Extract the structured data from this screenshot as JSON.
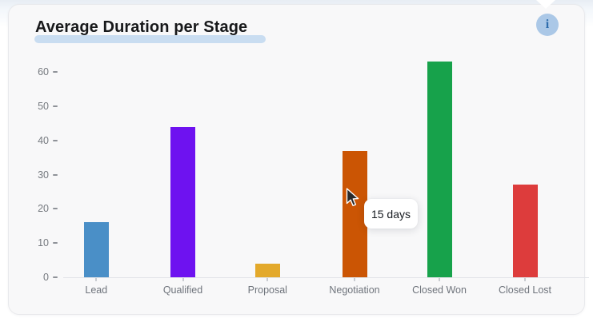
{
  "card": {
    "title": "Average Duration per Stage",
    "info_glyph": "i"
  },
  "tooltip": {
    "text": "15 days"
  },
  "chart_data": {
    "type": "bar",
    "title": "Average Duration per Stage",
    "categories": [
      "Lead",
      "Qualified",
      "Proposal",
      "Negotiation",
      "Closed Won",
      "Closed Lost"
    ],
    "values": [
      16,
      44,
      4,
      37,
      63,
      27
    ],
    "unit": "days",
    "bar_colors": [
      "#4a8fc7",
      "#6e12f0",
      "#e3a92b",
      "#cb5504",
      "#17a24b",
      "#dd3c3c"
    ],
    "y_ticks": [
      0,
      10,
      20,
      30,
      40,
      50,
      60
    ],
    "ylim": [
      0,
      65
    ],
    "xlabel": "",
    "ylabel": "",
    "grid": false,
    "legend": false
  },
  "colors": {
    "title_highlight": "#c9ddf1",
    "info_bg": "#abc8e7",
    "info_fg": "#2e6dad",
    "card_bg": "#f8f8f9",
    "axis_text": "#6f747c"
  }
}
